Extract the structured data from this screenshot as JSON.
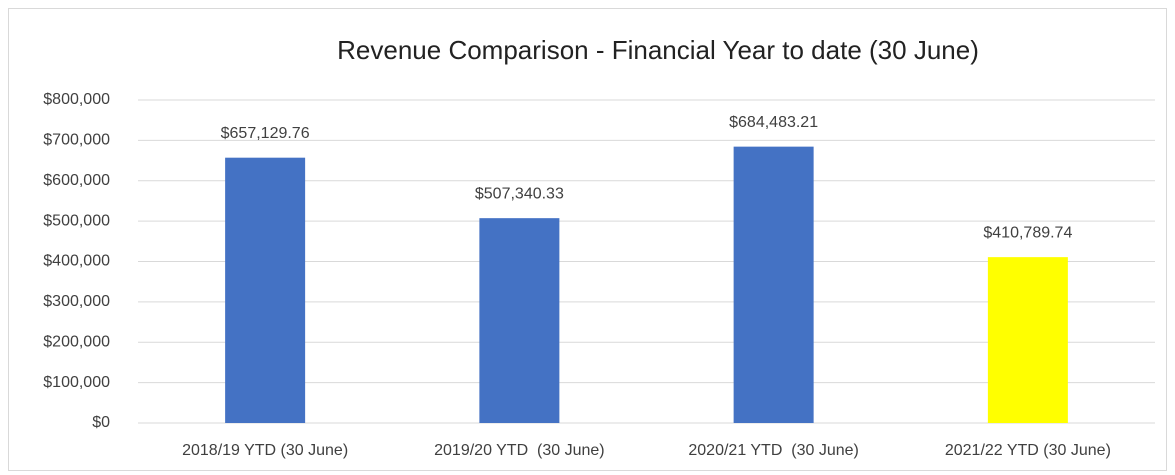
{
  "chart_data": {
    "type": "bar",
    "title": "Revenue Comparison - Financial Year to date (30 June)",
    "categories": [
      "2018/19 YTD (30 June)",
      "2019/20 YTD  (30 June)",
      "2020/21 YTD  (30 June)",
      "2021/22 YTD (30 June)"
    ],
    "values": [
      657129.76,
      507340.33,
      684483.21,
      410789.74
    ],
    "value_labels": [
      "$657,129.76",
      "$507,340.33",
      "$684,483.21",
      "$410,789.74"
    ],
    "colors": [
      "#4472c4",
      "#4472c4",
      "#4472c4",
      "#ffff00"
    ],
    "ylim": [
      0,
      800000
    ],
    "yticks": [
      {
        "value": 0,
        "label": "$0"
      },
      {
        "value": 100000,
        "label": "$100,000"
      },
      {
        "value": 200000,
        "label": "$200,000"
      },
      {
        "value": 300000,
        "label": "$300,000"
      },
      {
        "value": 400000,
        "label": "$400,000"
      },
      {
        "value": 500000,
        "label": "$500,000"
      },
      {
        "value": 600000,
        "label": "$600,000"
      },
      {
        "value": 700000,
        "label": "$700,000"
      },
      {
        "value": 800000,
        "label": "$800,000"
      }
    ],
    "grid": true
  }
}
